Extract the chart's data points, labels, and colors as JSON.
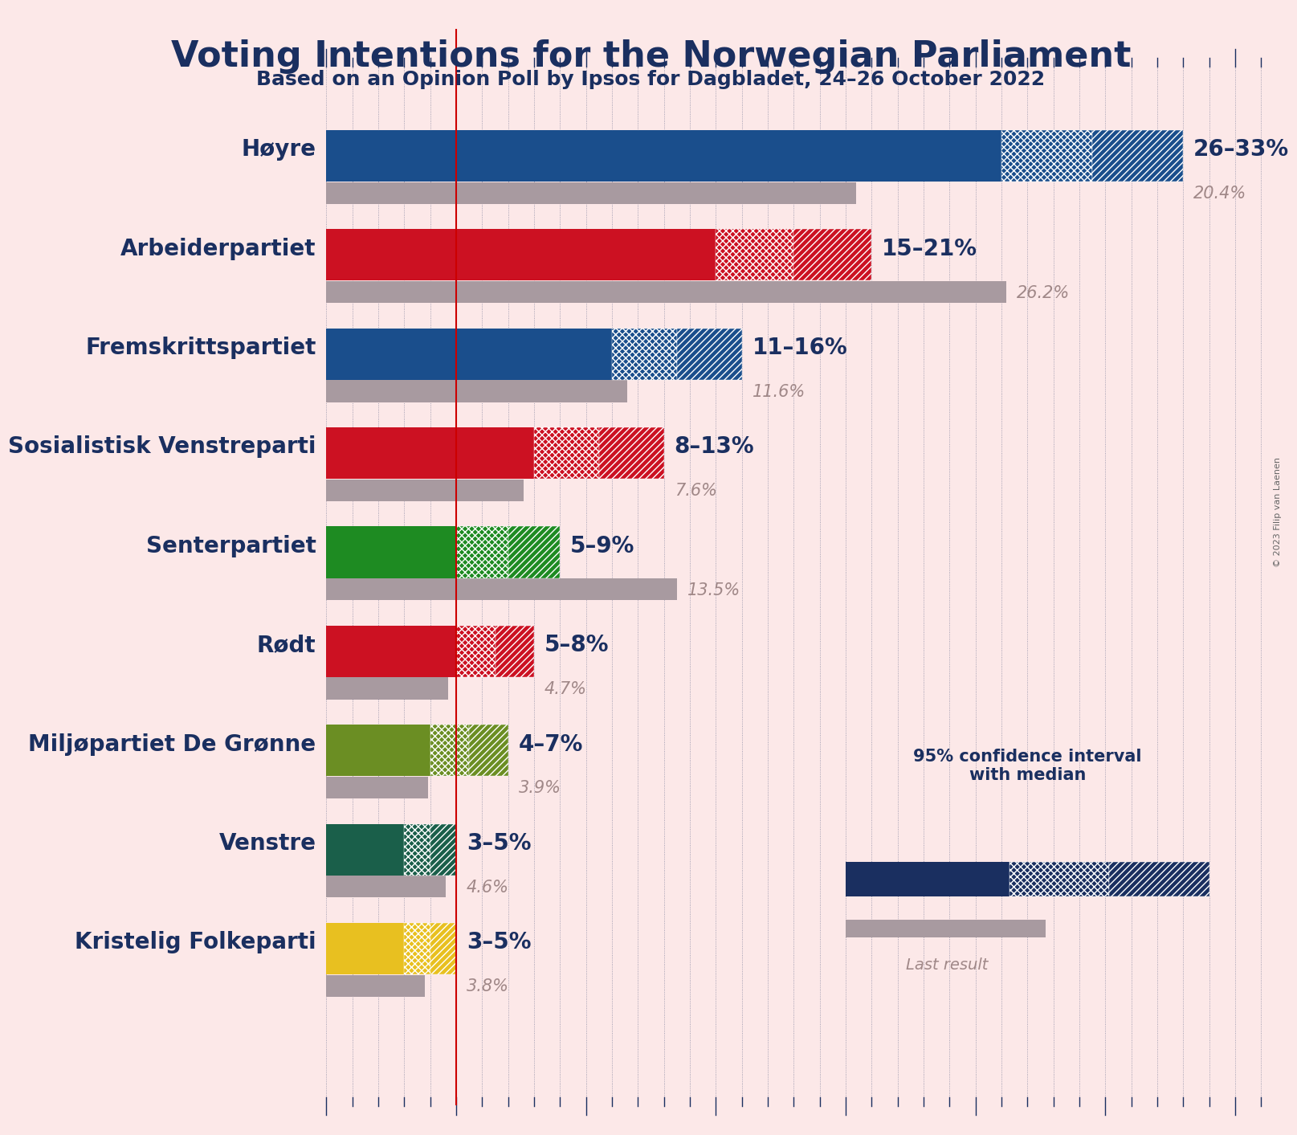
{
  "title": "Voting Intentions for the Norwegian Parliament",
  "subtitle": "Based on an Opinion Poll by Ipsos for Dagbladet, 24–26 October 2022",
  "copyright": "© 2023 Filip van Laenen",
  "background_color": "#fce8e8",
  "parties": [
    {
      "name": "Høyre",
      "ci_low": 26,
      "ci_high": 33,
      "median": 29.5,
      "last": 20.4,
      "color": "#1a4e8c",
      "label_range": "26–33%",
      "last_label": "20.4%"
    },
    {
      "name": "Arbeiderpartiet",
      "ci_low": 15,
      "ci_high": 21,
      "median": 18.0,
      "last": 26.2,
      "color": "#cc1122",
      "label_range": "15–21%",
      "last_label": "26.2%"
    },
    {
      "name": "Fremskrittspartiet",
      "ci_low": 11,
      "ci_high": 16,
      "median": 13.5,
      "last": 11.6,
      "color": "#1a4e8c",
      "label_range": "11–16%",
      "last_label": "11.6%"
    },
    {
      "name": "Sosialistisk Venstreparti",
      "ci_low": 8,
      "ci_high": 13,
      "median": 10.5,
      "last": 7.6,
      "color": "#cc1122",
      "label_range": "8–13%",
      "last_label": "7.6%"
    },
    {
      "name": "Senterpartiet",
      "ci_low": 5,
      "ci_high": 9,
      "median": 7.0,
      "last": 13.5,
      "color": "#1e8b22",
      "label_range": "5–9%",
      "last_label": "13.5%"
    },
    {
      "name": "Rødt",
      "ci_low": 5,
      "ci_high": 8,
      "median": 6.5,
      "last": 4.7,
      "color": "#cc1122",
      "label_range": "5–8%",
      "last_label": "4.7%"
    },
    {
      "name": "Miljøpartiet De Grønne",
      "ci_low": 4,
      "ci_high": 7,
      "median": 5.5,
      "last": 3.9,
      "color": "#6b8e23",
      "label_range": "4–7%",
      "last_label": "3.9%"
    },
    {
      "name": "Venstre",
      "ci_low": 3,
      "ci_high": 5,
      "median": 4.0,
      "last": 4.6,
      "color": "#1a5f4a",
      "label_range": "3–5%",
      "last_label": "4.6%"
    },
    {
      "name": "Kristelig Folkeparti",
      "ci_low": 3,
      "ci_high": 5,
      "median": 4.0,
      "last": 3.8,
      "color": "#e8c020",
      "label_range": "3–5%",
      "last_label": "3.8%"
    }
  ],
  "xmax": 36,
  "red_line_x": 5.0,
  "bar_height": 0.52,
  "last_bar_height": 0.22,
  "last_bar_color": "#a89aa0",
  "label_color_range": "#1a2f60",
  "label_color_last": "#a08888",
  "tick_color": "#1a2f60",
  "red_line_color": "#cc0000",
  "label_fontsize": 20,
  "last_fontsize": 15,
  "name_fontsize": 20,
  "title_fontsize": 32,
  "subtitle_fontsize": 18
}
